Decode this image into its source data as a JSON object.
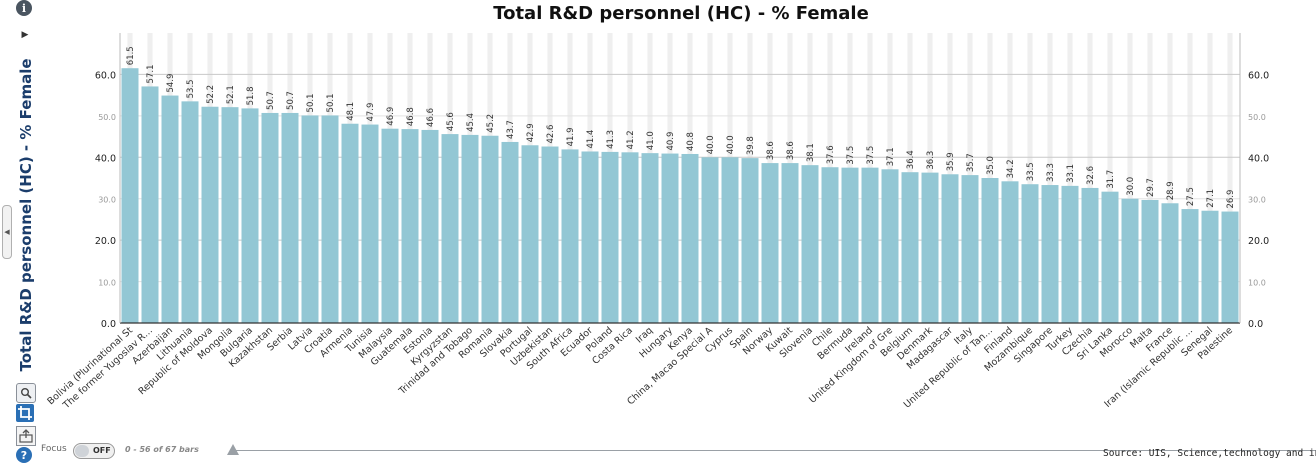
{
  "chart_data": {
    "type": "bar",
    "title": "Total R&D personnel (HC) - % Female",
    "ylabel": "Total R&D personnel (HC) - % Female",
    "xlabel": "",
    "ylim": [
      0,
      70
    ],
    "yticks": [
      "0.0",
      "10.0",
      "20.0",
      "30.0",
      "40.0",
      "50.0",
      "60.0"
    ],
    "grid": true,
    "categories": [
      "Bolivia (Plurinational St",
      "The former Yugoslav R…",
      "Azerbaijan",
      "Lithuania",
      "Republic of Moldova",
      "Mongolia",
      "Bulgaria",
      "Kazakhstan",
      "Serbia",
      "Latvia",
      "Croatia",
      "Armenia",
      "Tunisia",
      "Malaysia",
      "Guatemala",
      "Estonia",
      "Kyrgyzstan",
      "Trinidad and Tobago",
      "Romania",
      "Slovakia",
      "Portugal",
      "Uzbekistan",
      "South Africa",
      "Ecuador",
      "Poland",
      "Costa Rica",
      "Iraq",
      "Hungary",
      "Kenya",
      "China, Macao Special A",
      "Cyprus",
      "Spain",
      "Norway",
      "Kuwait",
      "Slovenia",
      "Chile",
      "Bermuda",
      "Ireland",
      "United Kingdom of Gre",
      "Belgium",
      "Denmark",
      "Madagascar",
      "Italy",
      "United Republic of Tan…",
      "Finland",
      "Mozambique",
      "Singapore",
      "Turkey",
      "Czechia",
      "Sri Lanka",
      "Morocco",
      "Malta",
      "France",
      "Iran (Islamic Republic …",
      "Senegal",
      "Palestine"
    ],
    "values": [
      61.5,
      57.1,
      54.9,
      53.5,
      52.2,
      52.1,
      51.8,
      50.7,
      50.7,
      50.1,
      50.1,
      48.1,
      47.9,
      46.9,
      46.8,
      46.6,
      45.6,
      45.4,
      45.2,
      43.7,
      42.9,
      42.6,
      41.9,
      41.4,
      41.3,
      41.2,
      41.0,
      40.9,
      40.8,
      40.0,
      40.0,
      39.8,
      38.6,
      38.6,
      38.1,
      37.6,
      37.5,
      37.5,
      37.1,
      36.4,
      36.3,
      35.9,
      35.7,
      35.0,
      34.2,
      33.5,
      33.3,
      33.1,
      32.6,
      31.7,
      30.0,
      29.7,
      28.9,
      27.5,
      27.1,
      26.9
    ],
    "colors": {
      "bar": "#93c7d4",
      "background_stripe": "#efefef",
      "axis": "#333333"
    }
  },
  "toolbar": {
    "info_icon": "i",
    "help_icon": "?",
    "arrow_icon": "▶",
    "collapse_icon": "◀"
  },
  "footer": {
    "focus_label": "Focus",
    "focus_state": "OFF",
    "bars_range": "0 - 56 of 67 bars",
    "source": "Source: UIS, Science,technology and inno"
  }
}
